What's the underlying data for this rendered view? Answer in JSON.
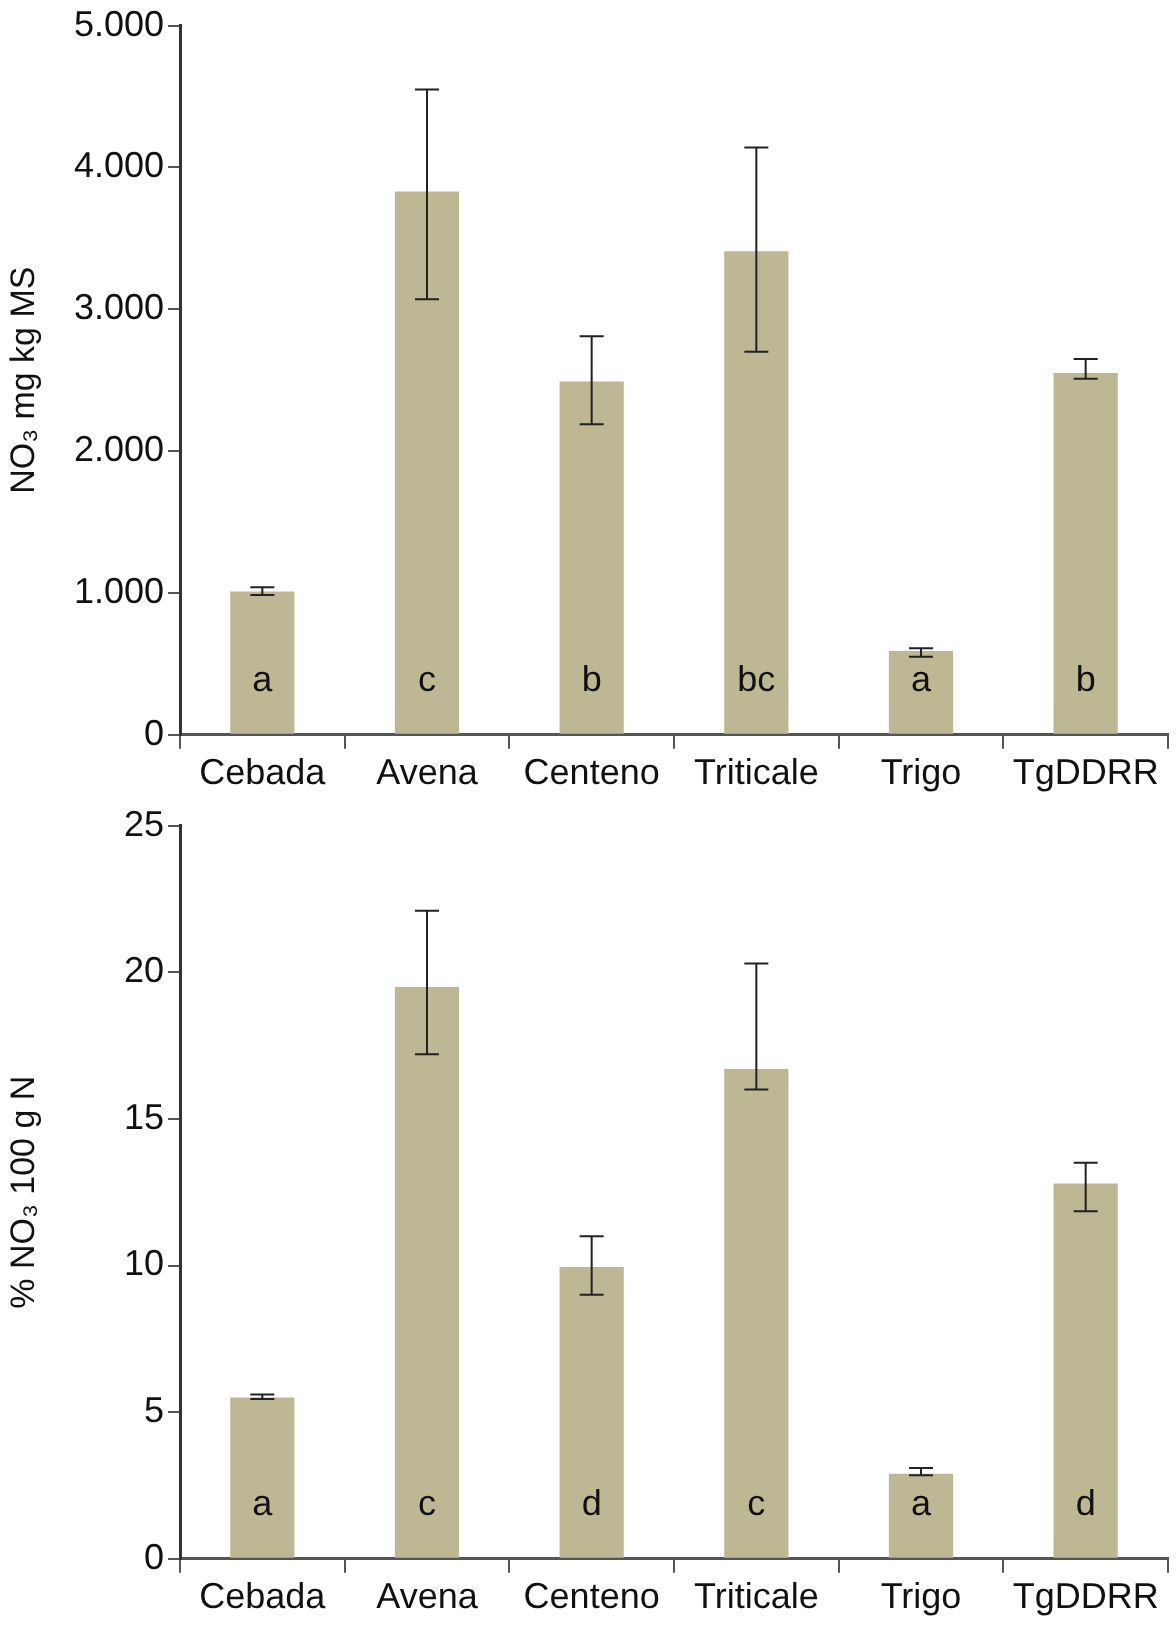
{
  "chart_data": [
    {
      "type": "bar",
      "ylabel": "NO₃ mg kg MS",
      "categories": [
        "Cebada",
        "Avena",
        "Centeno",
        "Triticale",
        "Trigo",
        "TgDDRR"
      ],
      "values": [
        1010,
        3830,
        2490,
        3410,
        590,
        2550
      ],
      "color": "#bdb793",
      "errors": [
        [
          985,
          1040
        ],
        [
          3070,
          4550
        ],
        [
          2190,
          2810
        ],
        [
          2700,
          4140
        ],
        [
          550,
          610
        ],
        [
          2510,
          2650
        ]
      ],
      "ylim": [
        0,
        5000
      ],
      "yticks": [
        {
          "value": 0,
          "label": "0"
        },
        {
          "value": 1000,
          "label": "1.000"
        },
        {
          "value": 2000,
          "label": "2.000"
        },
        {
          "value": 3000,
          "label": "3.000"
        },
        {
          "value": 4000,
          "label": "4.000"
        },
        {
          "value": 5000,
          "label": "5.000"
        }
      ],
      "grid": false,
      "legend": false,
      "annotations": [
        "a",
        "c",
        "b",
        "bc",
        "a",
        "b"
      ]
    },
    {
      "type": "bar",
      "ylabel": "% NO₃ 100 g N",
      "categories": [
        "Cebada",
        "Avena",
        "Centeno",
        "Triticale",
        "Trigo",
        "TgDDRR"
      ],
      "values": [
        5.5,
        19.5,
        9.95,
        16.7,
        2.9,
        12.8
      ],
      "color": "#bdb793",
      "errors": [
        [
          5.45,
          5.6
        ],
        [
          17.2,
          22.1
        ],
        [
          9,
          11
        ],
        [
          16,
          20.3
        ],
        [
          2.85,
          3.1
        ],
        [
          11.85,
          13.5
        ]
      ],
      "ylim": [
        0,
        25
      ],
      "yticks": [
        0,
        5,
        10,
        15,
        20,
        25
      ],
      "grid": false,
      "legend": false,
      "annotations": [
        "a",
        "c",
        "d",
        "c",
        "a",
        "d"
      ]
    }
  ]
}
